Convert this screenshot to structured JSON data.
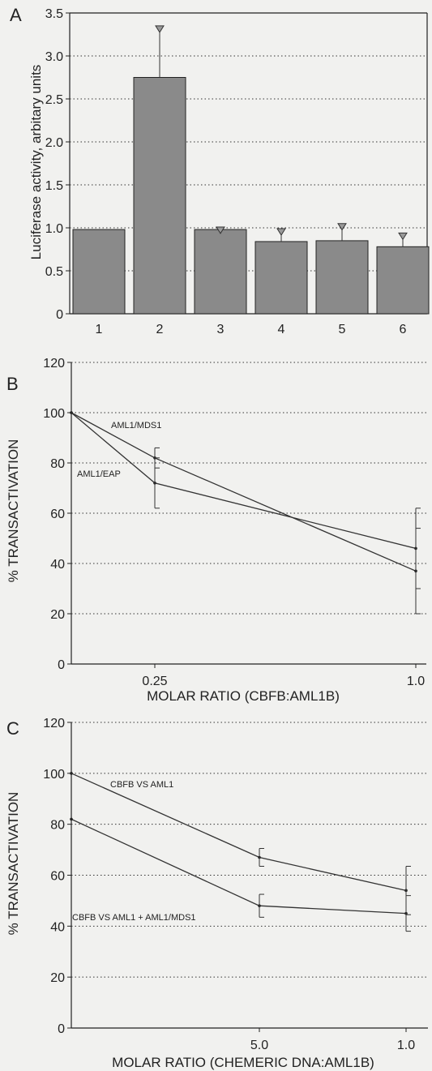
{
  "chart_data": [
    {
      "panel": "A",
      "type": "bar",
      "categories": [
        "1",
        "2",
        "3",
        "4",
        "5",
        "6"
      ],
      "values": [
        0.98,
        2.75,
        0.98,
        0.84,
        0.85,
        0.78
      ],
      "errors": [
        0,
        0.6,
        0.03,
        0.15,
        0.2,
        0.16
      ],
      "title": "",
      "xlabel": "",
      "ylabel": "Luciferase activity, arbitary units",
      "ylim": [
        0,
        3.5
      ],
      "yticks": [
        "0",
        "0.5",
        "1.0",
        "1.5",
        "2.0",
        "2.5",
        "3.0",
        "3.5"
      ],
      "grid": true
    },
    {
      "panel": "B",
      "type": "line",
      "x": [
        0,
        0.25,
        1.0
      ],
      "xticks": [
        "0.25",
        "1.0"
      ],
      "series": [
        {
          "name": "AML1/MDS1",
          "values": [
            100,
            82,
            37
          ],
          "errors": [
            0,
            4,
            17
          ]
        },
        {
          "name": "AML1/EAP",
          "values": [
            100,
            72,
            46
          ],
          "errors": [
            0,
            10,
            16
          ]
        }
      ],
      "title": "",
      "xlabel": "MOLAR RATIO (CBFB:AML1B)",
      "ylabel": "% TRANSACTIVATION",
      "ylim": [
        0,
        120
      ],
      "yticks": [
        "0",
        "20",
        "40",
        "60",
        "80",
        "100",
        "120"
      ],
      "grid": true
    },
    {
      "panel": "C",
      "type": "line",
      "x": [
        0,
        5.0,
        1.0
      ],
      "xticks": [
        "5.0",
        "1.0"
      ],
      "series": [
        {
          "name": "CBFB VS AML1",
          "values": [
            100,
            67,
            54
          ],
          "errors": [
            0,
            3.5,
            9.5
          ]
        },
        {
          "name": "CBFB VS AML1 + AML1/MDS1",
          "values": [
            82,
            48,
            45
          ],
          "errors": [
            0,
            4.5,
            7
          ]
        }
      ],
      "title": "",
      "xlabel": "MOLAR RATIO (CHEMERIC DNA:AML1B)",
      "ylabel": "% TRANSACTIVATION",
      "ylim": [
        0,
        120
      ],
      "yticks": [
        "0",
        "20",
        "40",
        "60",
        "80",
        "100",
        "120"
      ],
      "grid": true
    }
  ]
}
